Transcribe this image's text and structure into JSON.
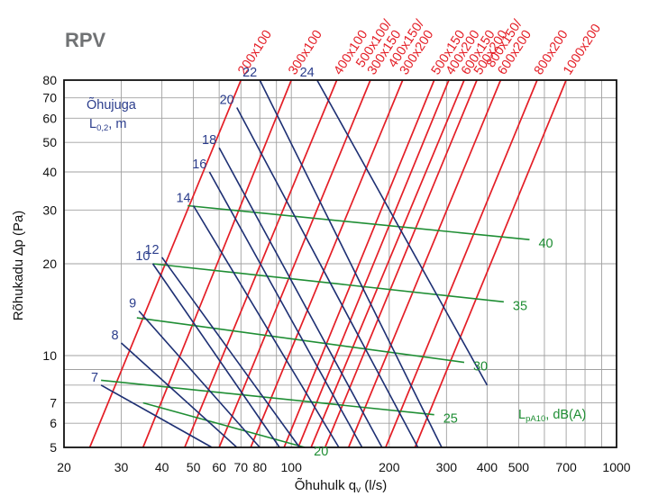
{
  "chart_data": {
    "type": "line",
    "title": "RPV",
    "xlabel": "Õhuhulk q",
    "xlabel_sub": "v",
    "xlabel_unit": " (l/s)",
    "ylabel": "Rõhukadu ∆p (Pa)",
    "x_scale": "log",
    "y_scale": "log",
    "xlim": [
      20,
      1000
    ],
    "ylim": [
      5,
      80
    ],
    "grid": true,
    "x_ticks": [
      {
        "v": 20,
        "label": "20"
      },
      {
        "v": 30,
        "label": "30"
      },
      {
        "v": 40,
        "label": "40"
      },
      {
        "v": 50,
        "label": "50"
      },
      {
        "v": 60,
        "label": "60"
      },
      {
        "v": 70,
        "label": "70"
      },
      {
        "v": 80,
        "label": "80"
      },
      {
        "v": 100,
        "label": "100"
      },
      {
        "v": 200,
        "label": "200"
      },
      {
        "v": 300,
        "label": "300"
      },
      {
        "v": 400,
        "label": "400"
      },
      {
        "v": 500,
        "label": "500"
      },
      {
        "v": 700,
        "label": "700"
      },
      {
        "v": 1000,
        "label": "1000"
      }
    ],
    "x_grid": [
      20,
      30,
      40,
      50,
      60,
      70,
      80,
      90,
      100,
      200,
      300,
      400,
      500,
      600,
      700,
      800,
      900,
      1000
    ],
    "y_ticks": [
      {
        "v": 5,
        "label": "5"
      },
      {
        "v": 6,
        "label": "6"
      },
      {
        "v": 7,
        "label": "7"
      },
      {
        "v": 10,
        "label": "10"
      },
      {
        "v": 20,
        "label": "20"
      },
      {
        "v": 30,
        "label": "30"
      },
      {
        "v": 40,
        "label": "40"
      },
      {
        "v": 50,
        "label": "50"
      },
      {
        "v": 60,
        "label": "60"
      },
      {
        "v": 70,
        "label": "70"
      },
      {
        "v": 80,
        "label": "80"
      }
    ],
    "y_grid": [
      5,
      6,
      7,
      8,
      9,
      10,
      20,
      30,
      40,
      50,
      60,
      70,
      80
    ],
    "duct_series": [
      {
        "name": "200x100",
        "x": [
          24,
          70
        ],
        "y": [
          5,
          80
        ]
      },
      {
        "name": "300x100",
        "x": [
          35,
          100
        ],
        "y": [
          5,
          80
        ]
      },
      {
        "name": "400x100",
        "x": [
          47,
          138
        ],
        "y": [
          5,
          80
        ]
      },
      {
        "name": "500x100/\n300x150",
        "x": [
          60,
          175
        ],
        "y": [
          5,
          80
        ]
      },
      {
        "name": "400x150/\n300x200",
        "x": [
          75,
          220
        ],
        "y": [
          5,
          80
        ]
      },
      {
        "name": "500x150",
        "x": [
          95,
          275
        ],
        "y": [
          5,
          80
        ]
      },
      {
        "name": "400x200",
        "x": [
          105,
          305
        ],
        "y": [
          5,
          80
        ]
      },
      {
        "name": "600x150",
        "x": [
          115,
          340
        ],
        "y": [
          5,
          80
        ]
      },
      {
        "name": "500x200",
        "x": [
          127,
          372
        ],
        "y": [
          5,
          80
        ]
      },
      {
        "name": "800x150/\n600x200",
        "x": [
          150,
          440
        ],
        "y": [
          5,
          80
        ]
      },
      {
        "name": "800x200",
        "x": [
          195,
          570
        ],
        "y": [
          5,
          80
        ]
      },
      {
        "name": "1000x200",
        "x": [
          240,
          700
        ],
        "y": [
          5,
          80
        ]
      }
    ],
    "throw_series": [
      {
        "name": "7",
        "x": [
          26,
          57
        ],
        "y": [
          8.0,
          5
        ]
      },
      {
        "name": "8",
        "x": [
          30,
          68
        ],
        "y": [
          11.0,
          5
        ]
      },
      {
        "name": "9",
        "x": [
          34,
          80
        ],
        "y": [
          14.0,
          5
        ]
      },
      {
        "name": "10",
        "x": [
          37.5,
          92
        ],
        "y": [
          20.0,
          5
        ]
      },
      {
        "name": "12",
        "x": [
          40,
          106
        ],
        "y": [
          21.0,
          5
        ]
      },
      {
        "name": "14",
        "x": [
          50,
          140
        ],
        "y": [
          31.0,
          5
        ]
      },
      {
        "name": "16",
        "x": [
          56,
          165
        ],
        "y": [
          40.0,
          5
        ]
      },
      {
        "name": "18",
        "x": [
          60,
          190
        ],
        "y": [
          48.0,
          5
        ]
      },
      {
        "name": "20",
        "x": [
          68,
          245
        ],
        "y": [
          65.0,
          5
        ]
      },
      {
        "name": "22",
        "x": [
          80,
          290
        ],
        "y": [
          80.0,
          5
        ]
      },
      {
        "name": "24",
        "x": [
          120,
          400
        ],
        "y": [
          80.0,
          8
        ]
      }
    ],
    "sound_series": [
      {
        "name": "20",
        "x": [
          35.0,
          110
        ],
        "y": [
          7.0,
          5
        ]
      },
      {
        "name": "25",
        "x": [
          26.0,
          275
        ],
        "y": [
          8.3,
          6.4
        ]
      },
      {
        "name": "30",
        "x": [
          33.5,
          340
        ],
        "y": [
          13.3,
          9.5
        ]
      },
      {
        "name": "35",
        "x": [
          37.5,
          450
        ],
        "y": [
          20.0,
          15.0
        ]
      },
      {
        "name": "40",
        "x": [
          48.0,
          540
        ],
        "y": [
          31.0,
          24.0
        ]
      }
    ],
    "annotations": {
      "throw_title": "Õhujuga",
      "throw_unit_main": "L",
      "throw_unit_sub": "0,2",
      "throw_unit_tail": ", m",
      "sound_unit_main": "L",
      "sound_unit_sub": "pA10",
      "sound_unit_tail": ", dB(A)"
    },
    "colors": {
      "duct": "#e41e26",
      "throw": "#1d2f73",
      "throw_text": "#2b3d8c",
      "sound": "#1f8e34",
      "grid": "#a0a0a0",
      "frame": "#111111",
      "title": "#707274"
    }
  }
}
